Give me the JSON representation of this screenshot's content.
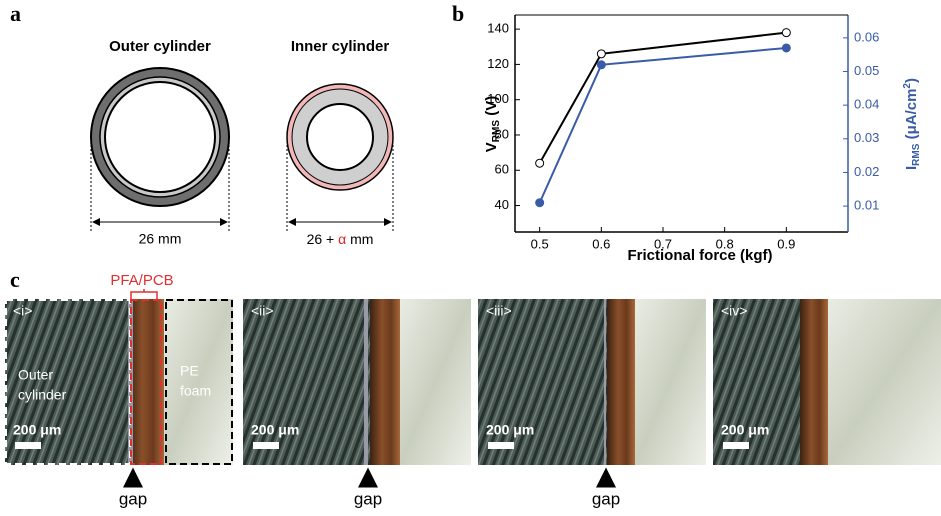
{
  "panel_labels": [
    "a",
    "b",
    "c"
  ],
  "panel_a": {
    "outer": {
      "title": "Outer cylinder",
      "dimension": "26 mm"
    },
    "inner": {
      "title": "Inner cylinder",
      "dimension_parts": [
        "26 + ",
        "α",
        " mm"
      ]
    }
  },
  "chart_data": {
    "type": "line",
    "x": [
      0.5,
      0.6,
      0.9
    ],
    "xlim": [
      0.46,
      1.0
    ],
    "xticks": [
      0.5,
      0.6,
      0.7,
      0.8,
      0.9
    ],
    "xlabel": "Frictional force (kgf)",
    "ylabel_parts": [
      "V",
      "RMS",
      " (V)"
    ],
    "y2label_parts": [
      "I",
      "RMS",
      " (μA/cm",
      "2",
      ")"
    ],
    "ylim": [
      25,
      148
    ],
    "yticks": [
      40,
      60,
      80,
      100,
      120,
      140
    ],
    "y2lim": [
      0.0023,
      0.0668
    ],
    "y2ticks": [
      0.01,
      0.02,
      0.03,
      0.04,
      0.05,
      0.06
    ],
    "series": [
      {
        "name": "VRMS",
        "color": "#000000",
        "marker_fill": "#ffffff",
        "values": [
          64,
          126,
          138
        ]
      },
      {
        "name": "IRMS",
        "color": "#3a5ba8",
        "marker_fill": "#3a5ba8",
        "axis": "y2",
        "values": [
          0.011,
          0.052,
          0.057
        ]
      }
    ]
  },
  "panel_c": {
    "layer_label": "PFA/PCB",
    "left_region": [
      "Outer",
      "cylinder"
    ],
    "right_region": [
      "PE",
      "foam"
    ],
    "images": [
      {
        "label": "<i>",
        "scale": "200 μm",
        "gap": "gap"
      },
      {
        "label": "<ii>",
        "scale": "200 μm",
        "gap": "gap"
      },
      {
        "label": "<iii>",
        "scale": "200 μm",
        "gap": "gap"
      },
      {
        "label": "<iv>",
        "scale": "200 μm"
      }
    ]
  }
}
